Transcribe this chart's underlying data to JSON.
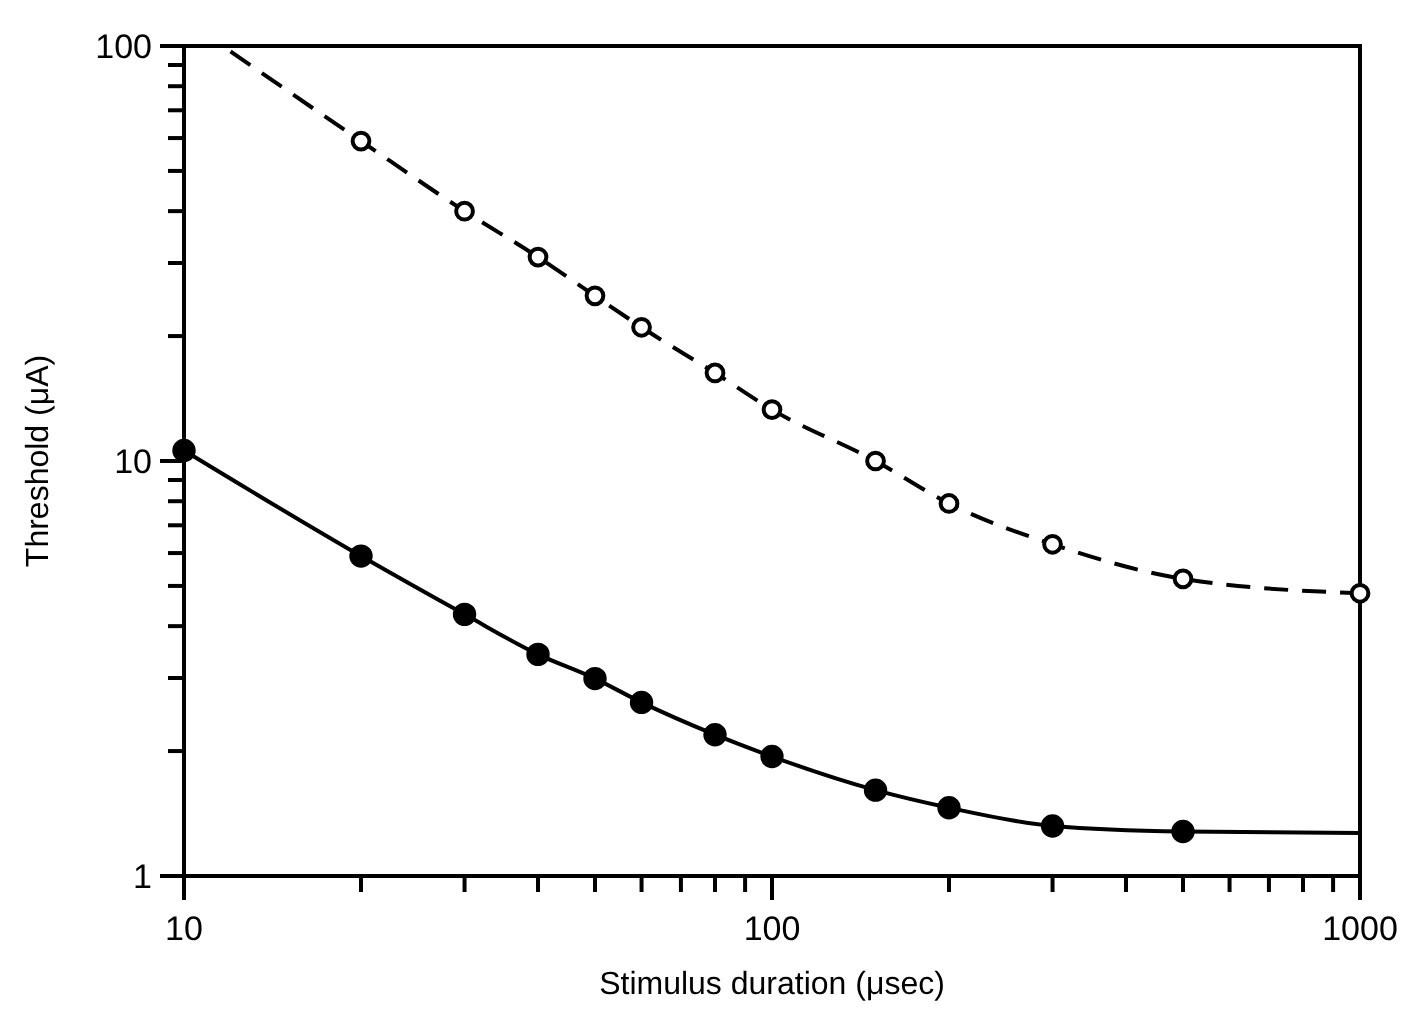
{
  "chart_data": {
    "type": "line",
    "xlabel": "Stimulus duration (μsec)",
    "ylabel": "Threshold (μA)",
    "log": "xy",
    "grid": false,
    "xlim": [
      10,
      1000
    ],
    "ylim": [
      1,
      100
    ],
    "xticks": [
      10,
      {
        "value": 20,
        "label": null
      },
      {
        "value": 30,
        "label": null
      },
      {
        "value": 40,
        "label": null
      },
      {
        "value": 50,
        "label": null
      },
      {
        "value": 60,
        "label": null
      },
      {
        "value": 70,
        "label": null
      },
      {
        "value": 80,
        "label": null
      },
      {
        "value": 90,
        "label": null
      },
      100,
      {
        "value": 200,
        "label": null
      },
      {
        "value": 300,
        "label": null
      },
      {
        "value": 400,
        "label": null
      },
      {
        "value": 500,
        "label": null
      },
      {
        "value": 600,
        "label": null
      },
      {
        "value": 700,
        "label": null
      },
      {
        "value": 800,
        "label": null
      },
      {
        "value": 900,
        "label": null
      },
      1000
    ],
    "yticks": [
      1,
      {
        "value": 2,
        "label": null
      },
      {
        "value": 3,
        "label": null
      },
      {
        "value": 4,
        "label": null
      },
      {
        "value": 5,
        "label": null
      },
      {
        "value": 6,
        "label": null
      },
      {
        "value": 7,
        "label": null
      },
      {
        "value": 8,
        "label": null
      },
      {
        "value": 9,
        "label": null
      },
      10,
      {
        "value": 20,
        "label": null
      },
      {
        "value": 30,
        "label": null
      },
      {
        "value": 40,
        "label": null
      },
      {
        "value": 50,
        "label": null
      },
      {
        "value": 60,
        "label": null
      },
      {
        "value": 70,
        "label": null
      },
      {
        "value": 80,
        "label": null
      },
      {
        "value": 90,
        "label": null
      },
      100
    ],
    "series": [
      {
        "color": "#000000",
        "line_style": "dashed",
        "marker": "none",
        "x": [
          12,
          20,
          30,
          40,
          50,
          60,
          80,
          100,
          150,
          200,
          300,
          500,
          1000
        ],
        "values": [
          97,
          59,
          40,
          31,
          25,
          21,
          16.3,
          13.3,
          10,
          7.9,
          6.3,
          5.2,
          4.8
        ]
      },
      {
        "color": "#000000",
        "line_style": "solid",
        "marker": "none",
        "x": [
          10,
          20,
          30,
          40,
          50,
          60,
          80,
          100,
          150,
          200,
          300,
          500,
          1000
        ],
        "values": [
          10.6,
          5.9,
          4.27,
          3.42,
          2.99,
          2.62,
          2.19,
          1.94,
          1.61,
          1.46,
          1.32,
          1.28,
          1.27
        ]
      },
      {
        "type": "scatter",
        "color": "#ffffff",
        "marker": "circle",
        "x": [
          20,
          30,
          40,
          50,
          60,
          80,
          100,
          150,
          200,
          300,
          500,
          1000
        ],
        "values": [
          59,
          40,
          31,
          25,
          21,
          16.3,
          13.3,
          10,
          7.9,
          6.3,
          5.2,
          4.8
        ]
      },
      {
        "type": "scatter",
        "color": "#000000",
        "marker": "circle",
        "x": [
          10,
          20,
          30,
          40,
          50,
          60,
          80,
          100,
          150,
          200,
          300,
          500
        ],
        "values": [
          10.6,
          5.9,
          4.27,
          3.42,
          2.99,
          2.62,
          2.19,
          1.94,
          1.61,
          1.46,
          1.32,
          1.28
        ]
      }
    ]
  }
}
